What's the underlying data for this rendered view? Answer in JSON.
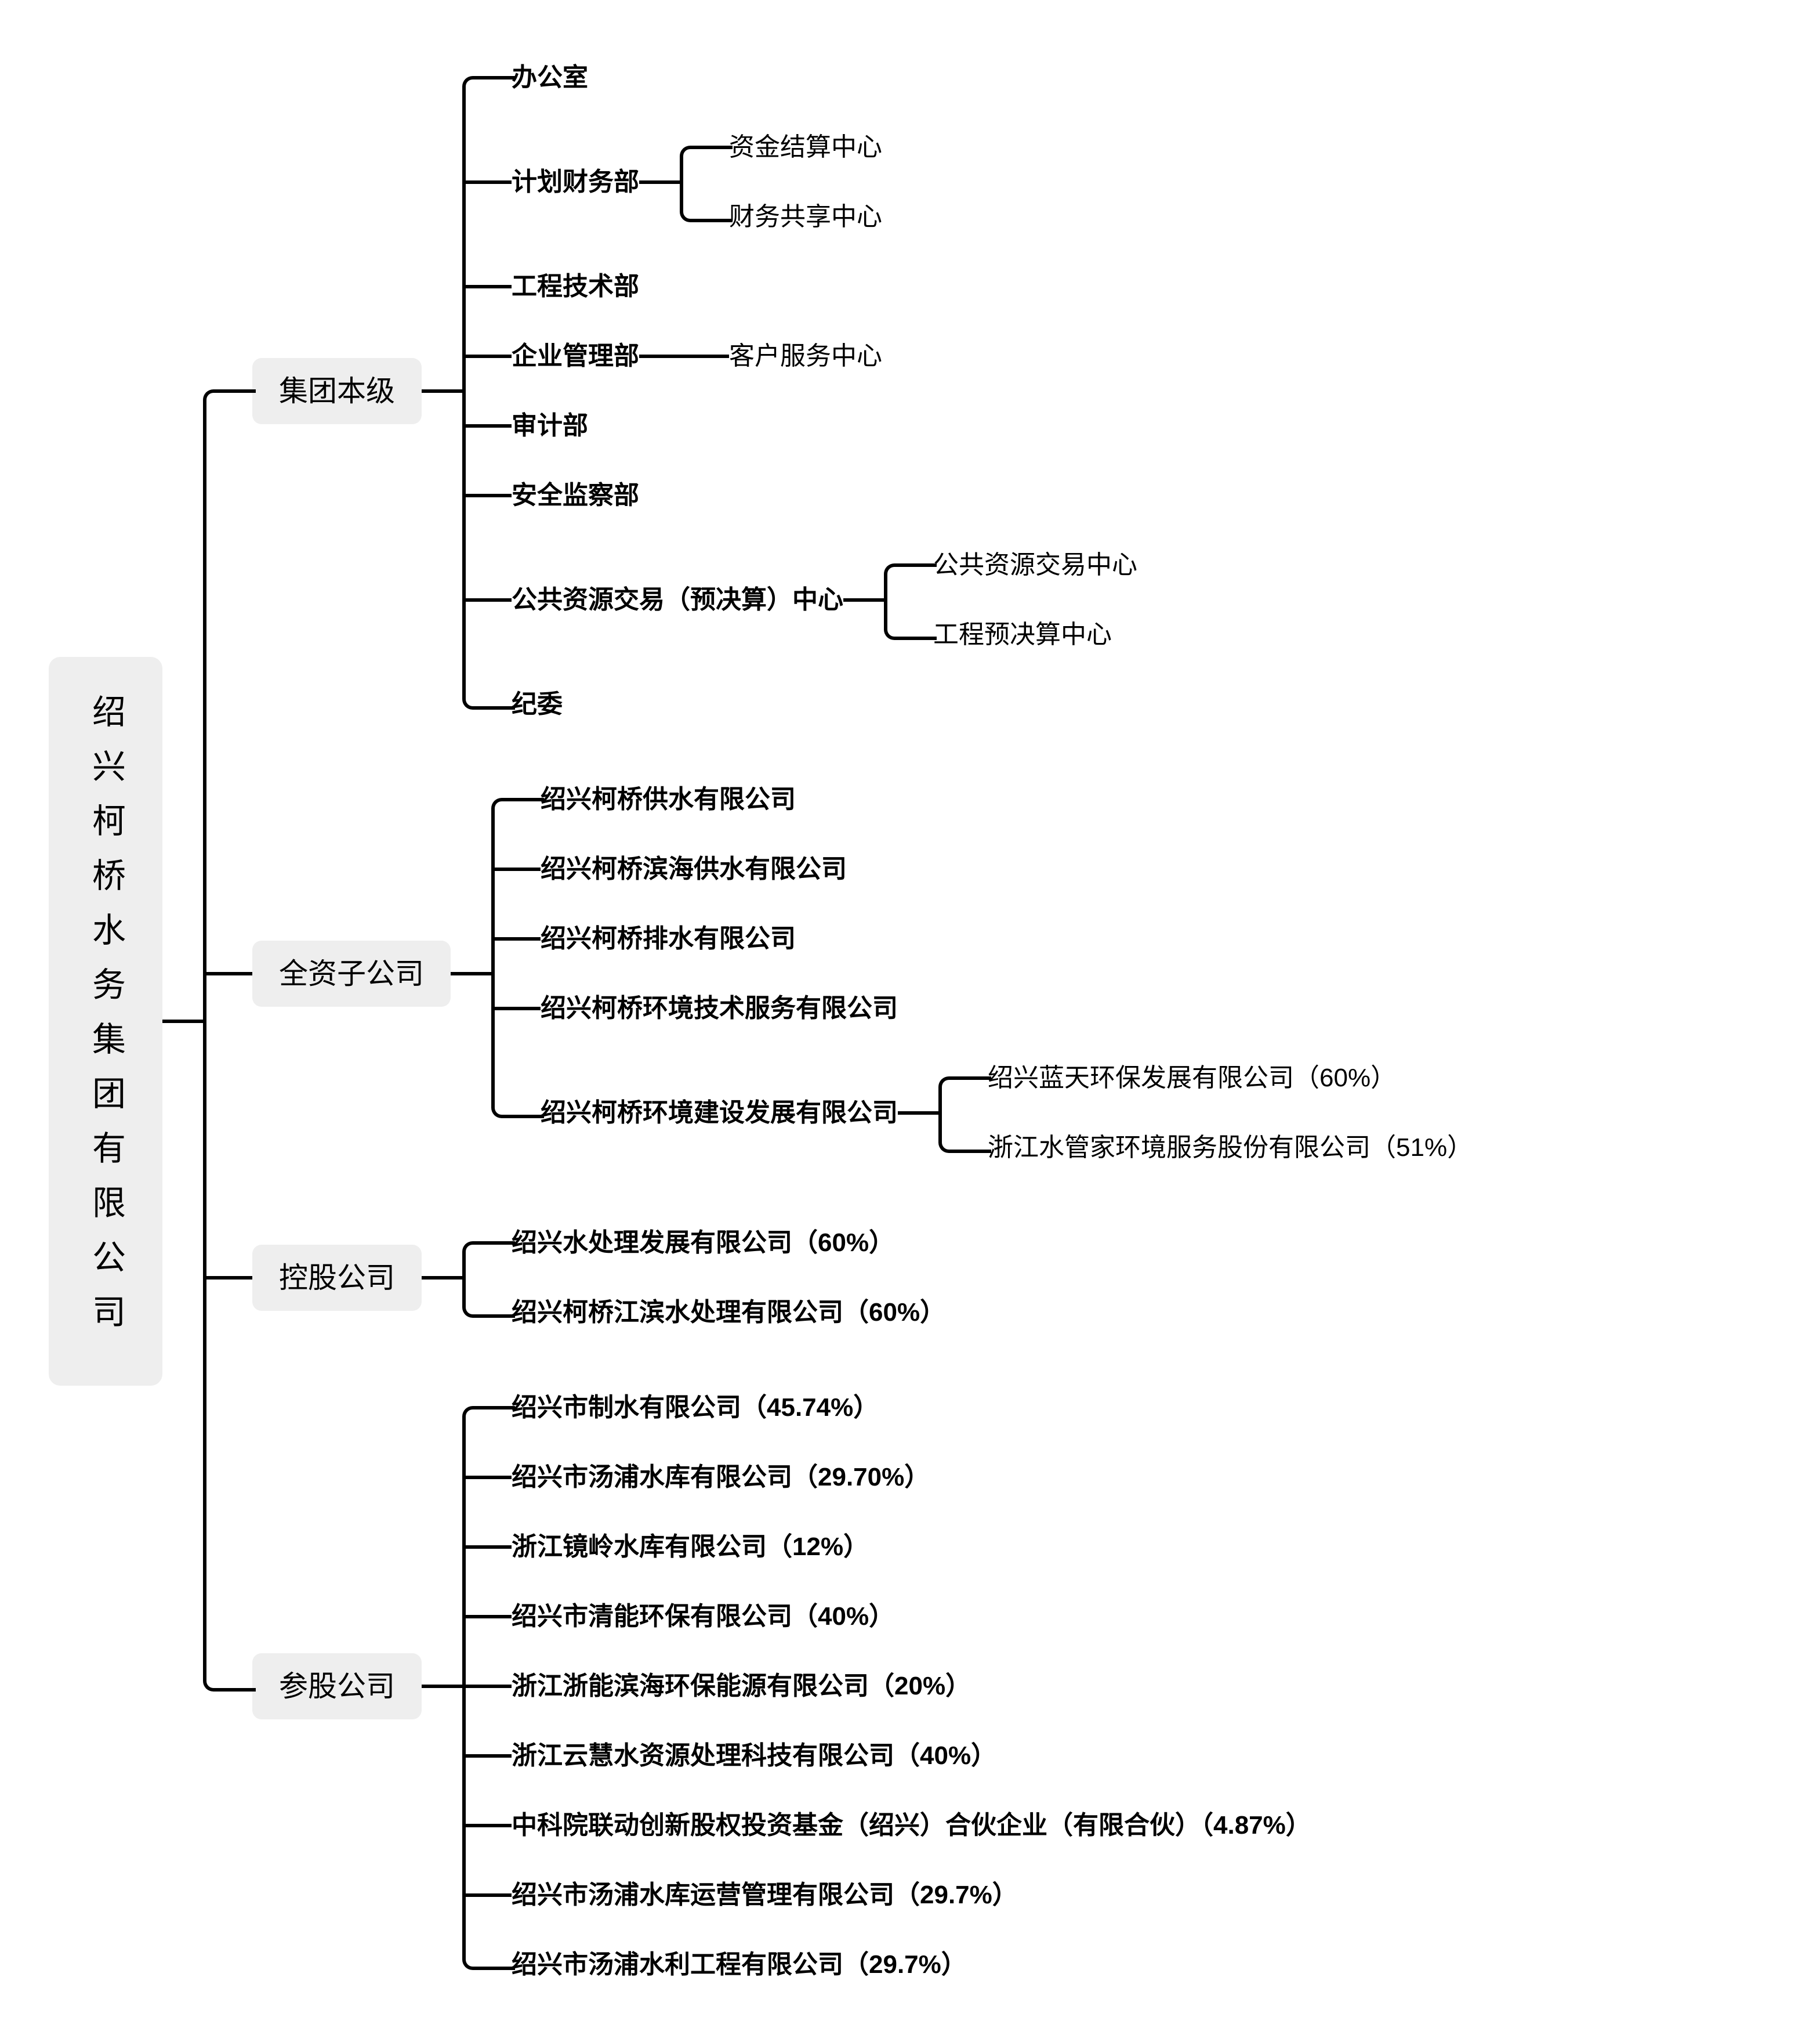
{
  "style": {
    "line_color": "#000000",
    "node_box_bg": "#eeeeee",
    "text_color": "#000000",
    "background": "#ffffff"
  },
  "tree": {
    "root": {
      "label": "绍兴柯桥水务集团有限公司"
    },
    "groups": [
      {
        "label": "集团本级",
        "children": [
          {
            "label": "办公室"
          },
          {
            "label": "计划财务部",
            "children": [
              {
                "label": "资金结算中心"
              },
              {
                "label": "财务共享中心"
              }
            ]
          },
          {
            "label": "工程技术部"
          },
          {
            "label": "企业管理部",
            "children": [
              {
                "label": "客户服务中心"
              }
            ]
          },
          {
            "label": "审计部"
          },
          {
            "label": "安全监察部"
          },
          {
            "label": "公共资源交易（预决算）中心",
            "children": [
              {
                "label": "公共资源交易中心"
              },
              {
                "label": "工程预决算中心"
              }
            ]
          },
          {
            "label": "纪委"
          }
        ]
      },
      {
        "label": "全资子公司",
        "children": [
          {
            "label": "绍兴柯桥供水有限公司"
          },
          {
            "label": "绍兴柯桥滨海供水有限公司"
          },
          {
            "label": "绍兴柯桥排水有限公司"
          },
          {
            "label": "绍兴柯桥环境技术服务有限公司"
          },
          {
            "label": "绍兴柯桥环境建设发展有限公司",
            "children": [
              {
                "label": "绍兴蓝天环保发展有限公司（60%）"
              },
              {
                "label": "浙江水管家环境服务股份有限公司（51%）"
              }
            ]
          }
        ]
      },
      {
        "label": "控股公司",
        "children": [
          {
            "label": "绍兴水处理发展有限公司（60%）"
          },
          {
            "label": "绍兴柯桥江滨水处理有限公司（60%）"
          }
        ]
      },
      {
        "label": "参股公司",
        "children": [
          {
            "label": "绍兴市制水有限公司（45.74%）"
          },
          {
            "label": "绍兴市汤浦水库有限公司（29.70%）"
          },
          {
            "label": "浙江镜岭水库有限公司（12%）"
          },
          {
            "label": "绍兴市清能环保有限公司（40%）"
          },
          {
            "label": "浙江浙能滨海环保能源有限公司（20%）"
          },
          {
            "label": "浙江云慧水资源处理科技有限公司（40%）"
          },
          {
            "label": "中科院联动创新股权投资基金（绍兴）合伙企业（有限合伙）（4.87%）"
          },
          {
            "label": "绍兴市汤浦水库运营管理有限公司（29.7%）"
          },
          {
            "label": "绍兴市汤浦水利工程有限公司（29.7%）"
          }
        ]
      }
    ]
  }
}
